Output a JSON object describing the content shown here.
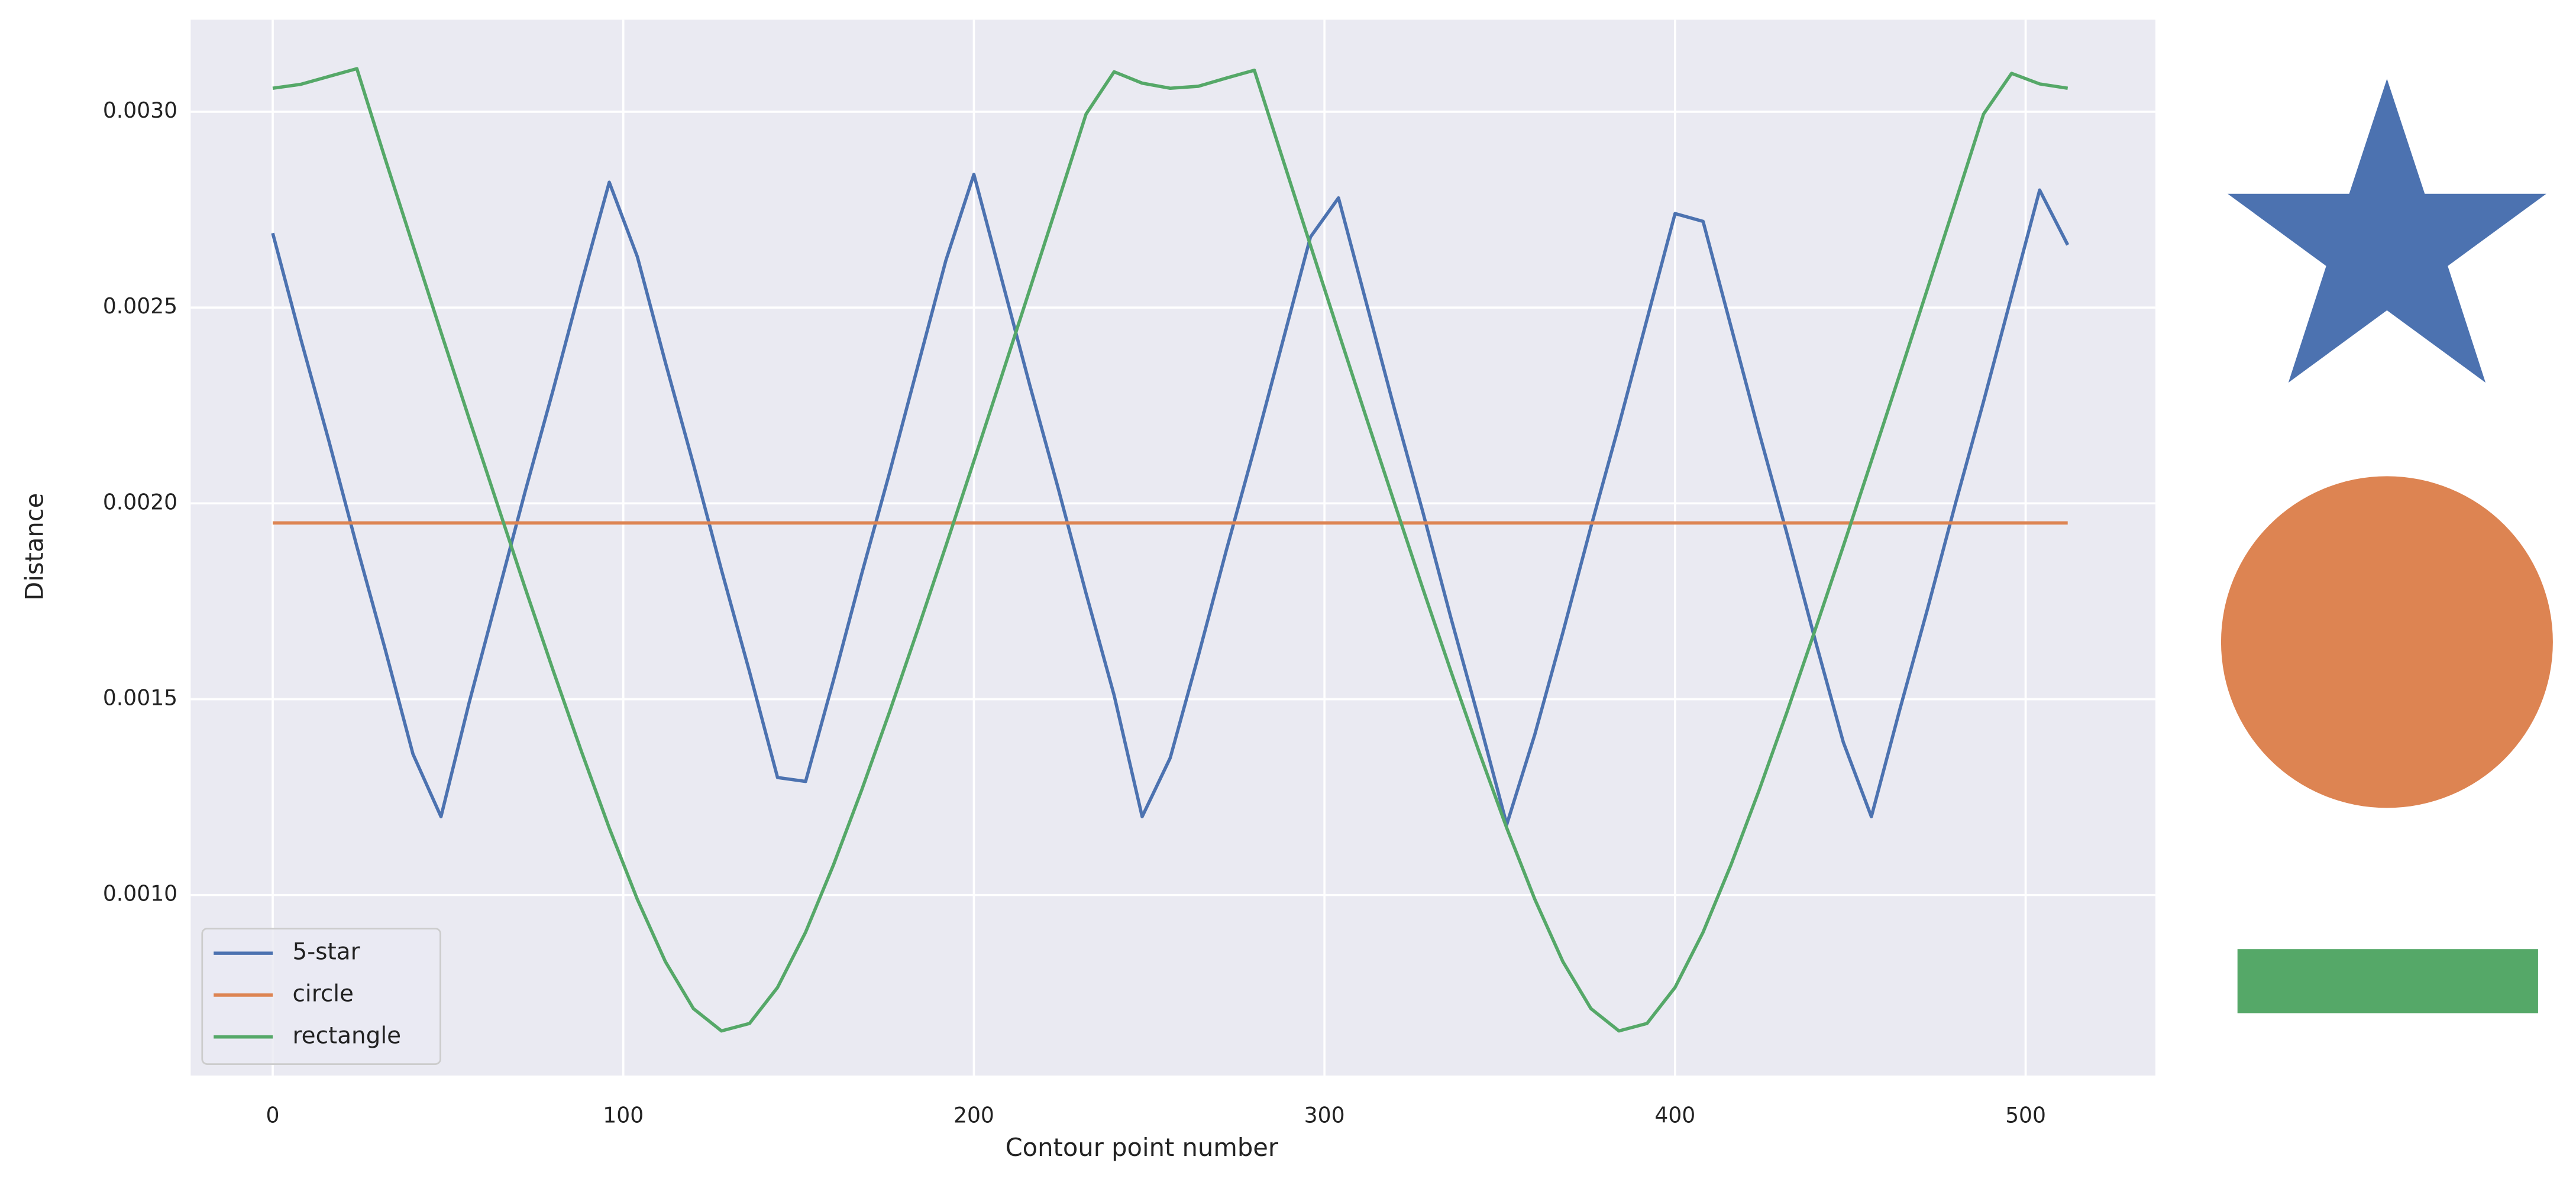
{
  "chart_data": {
    "type": "line",
    "xlabel": "Contour point number",
    "ylabel": "Distance",
    "x": [
      0,
      8,
      16,
      24,
      32,
      40,
      48,
      56,
      64,
      72,
      80,
      88,
      96,
      104,
      112,
      120,
      128,
      136,
      144,
      152,
      160,
      168,
      176,
      184,
      192,
      200,
      208,
      216,
      224,
      232,
      240,
      248,
      256,
      264,
      272,
      280,
      288,
      296,
      304,
      312,
      320,
      328,
      336,
      344,
      352,
      360,
      368,
      376,
      384,
      392,
      400,
      408,
      416,
      424,
      432,
      440,
      448,
      456,
      464,
      472,
      480,
      488,
      496,
      504,
      512
    ],
    "series": [
      {
        "name": "5-star",
        "color": "#4c72b0",
        "values": [
          0.00269,
          0.00242,
          0.00216,
          0.00189,
          0.00163,
          0.00136,
          0.0012,
          0.00149,
          0.00176,
          0.00203,
          0.00229,
          0.00256,
          0.00282,
          0.00263,
          0.00236,
          0.0021,
          0.00183,
          0.00157,
          0.0013,
          0.00129,
          0.00155,
          0.00182,
          0.00208,
          0.00235,
          0.00262,
          0.00284,
          0.00257,
          0.0023,
          0.00204,
          0.00177,
          0.00151,
          0.0012,
          0.00135,
          0.00161,
          0.00188,
          0.00214,
          0.00241,
          0.00268,
          0.00278,
          0.00251,
          0.00224,
          0.00198,
          0.00171,
          0.00145,
          0.00118,
          0.00141,
          0.00167,
          0.00194,
          0.0022,
          0.00247,
          0.00274,
          0.00272,
          0.00245,
          0.00218,
          0.00192,
          0.00165,
          0.00139,
          0.0012,
          0.00147,
          0.00173,
          0.002,
          0.00226,
          0.00253,
          0.0028,
          0.00266
        ]
      },
      {
        "name": "circle",
        "color": "#dd8452",
        "values": [
          0.00195,
          0.00195,
          0.00195,
          0.00195,
          0.00195,
          0.00195,
          0.00195,
          0.00195,
          0.00195,
          0.00195,
          0.00195,
          0.00195,
          0.00195,
          0.00195,
          0.00195,
          0.00195,
          0.00195,
          0.00195,
          0.00195,
          0.00195,
          0.00195,
          0.00195,
          0.00195,
          0.00195,
          0.00195,
          0.00195,
          0.00195,
          0.00195,
          0.00195,
          0.00195,
          0.00195,
          0.00195,
          0.00195,
          0.00195,
          0.00195,
          0.00195,
          0.00195,
          0.00195,
          0.00195,
          0.00195,
          0.00195,
          0.00195,
          0.00195,
          0.00195,
          0.00195,
          0.00195,
          0.00195,
          0.00195,
          0.00195,
          0.00195,
          0.00195,
          0.00195,
          0.00195,
          0.00195,
          0.00195,
          0.00195,
          0.00195,
          0.00195,
          0.00195,
          0.00195,
          0.00195,
          0.00195,
          0.00195,
          0.00195,
          0.00195
        ]
      },
      {
        "name": "rectangle",
        "color": "#55a868",
        "values": [
          0.00306,
          0.00307,
          0.00309,
          0.00311,
          0.002882,
          0.002659,
          0.002437,
          0.002217,
          0.002,
          0.001784,
          0.001573,
          0.001368,
          0.001171,
          0.000989,
          0.00083,
          0.00071,
          0.000653,
          0.000672,
          0.000764,
          0.000905,
          0.001078,
          0.001268,
          0.001469,
          0.001678,
          0.001891,
          0.002108,
          0.002327,
          0.002548,
          0.00277,
          0.002994,
          0.003102,
          0.003073,
          0.00306,
          0.003065,
          0.003086,
          0.003106,
          0.002882,
          0.002659,
          0.002437,
          0.002217,
          0.002,
          0.001784,
          0.001573,
          0.001368,
          0.001171,
          0.000989,
          0.00083,
          0.00071,
          0.000653,
          0.000672,
          0.000764,
          0.000905,
          0.001078,
          0.001268,
          0.001469,
          0.001678,
          0.001891,
          0.002108,
          0.002327,
          0.002548,
          0.00277,
          0.002994,
          0.003098,
          0.003071,
          0.00306
        ]
      }
    ],
    "xlim": [
      -23.4,
      537
    ],
    "xticks": [
      0,
      100,
      200,
      300,
      400,
      500
    ],
    "ylim": [
      0.000539,
      0.003235
    ],
    "yticks": [
      {
        "value": 0.001,
        "label": "0.0010"
      },
      0.0015,
      {
        "value": 0.002,
        "label": "0.0020"
      },
      0.0025,
      {
        "value": 0.003,
        "label": "0.0030"
      }
    ],
    "grid": true,
    "legend": "lower left"
  }
}
